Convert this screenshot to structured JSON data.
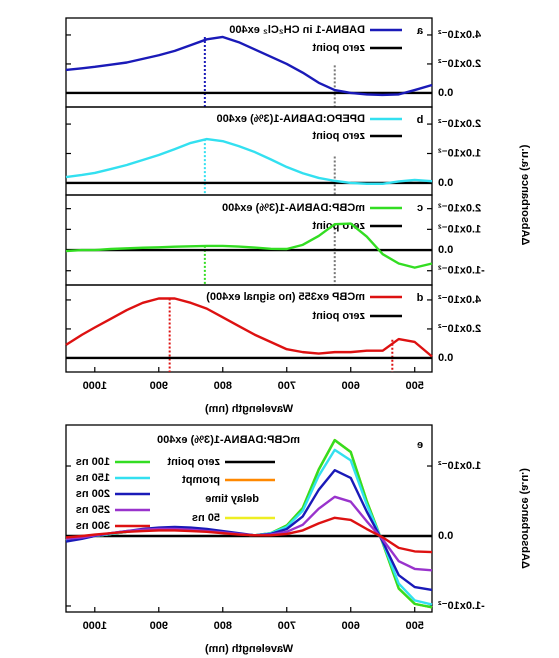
{
  "chart_data": [
    {
      "type": "line",
      "panel_label": "a",
      "ylabel": "ΔAbsorbance (a.u.)",
      "x": [
        1045,
        1020,
        1000,
        975,
        950,
        925,
        900,
        875,
        850,
        825,
        800,
        775,
        750,
        725,
        700,
        675,
        650,
        625,
        600,
        575,
        550,
        525,
        500,
        473
      ],
      "xlim": [
        473,
        1045
      ],
      "ylim": [
        -0.0097,
        0.0517
      ],
      "yticks": [
        {
          "value": 0,
          "label": "0.0"
        },
        {
          "value": 0.02,
          "label": "2.0x10⁻²"
        },
        {
          "value": 0.04,
          "label": "4.0x10⁻²"
        }
      ],
      "series": [
        {
          "name": "zero point",
          "color": "#000000",
          "values": [
            0,
            0,
            0,
            0,
            0,
            0,
            0,
            0,
            0,
            0,
            0,
            0,
            0,
            0,
            0,
            0,
            0,
            0,
            0,
            0,
            0,
            0,
            0,
            0
          ]
        },
        {
          "name": "DABNA-1 in CH₂Cl₂ ex400",
          "color": "#1a1ab8",
          "values": [
            0.0159,
            0.017,
            0.018,
            0.0195,
            0.021,
            0.0235,
            0.026,
            0.029,
            0.033,
            0.037,
            0.0386,
            0.035,
            0.03,
            0.025,
            0.02,
            0.014,
            0.007,
            0.002,
            0,
            -0.001,
            -0.0014,
            -0.001,
            0.002,
            0.0055
          ]
        }
      ],
      "markers": [
        {
          "x": 828,
          "y": 0.0386,
          "color": "#1a1ab8"
        },
        {
          "x": 625,
          "y": 0.019,
          "color": "#777777"
        }
      ]
    },
    {
      "type": "line",
      "panel_label": "b",
      "x": [
        1045,
        1020,
        1000,
        975,
        950,
        925,
        900,
        875,
        850,
        825,
        800,
        775,
        750,
        725,
        700,
        675,
        650,
        625,
        600,
        575,
        550,
        525,
        500,
        473
      ],
      "xlim": [
        473,
        1045
      ],
      "ylim": [
        -0.0041,
        0.0258
      ],
      "yticks": [
        {
          "value": 0,
          "label": "0.0"
        },
        {
          "value": 0.01,
          "label": "1.0x10⁻²"
        },
        {
          "value": 0.02,
          "label": "2.0x10⁻²"
        }
      ],
      "series": [
        {
          "name": "zero point",
          "color": "#000000",
          "values": [
            0,
            0,
            0,
            0,
            0,
            0,
            0,
            0,
            0,
            0,
            0,
            0,
            0,
            0,
            0,
            0,
            0,
            0,
            0,
            0,
            0,
            0,
            0,
            0
          ]
        },
        {
          "name": "DPEPO:DABNA-1(3%) ex400",
          "color": "#33e0f0",
          "values": [
            0.002,
            0.0027,
            0.0034,
            0.0047,
            0.0061,
            0.0078,
            0.0095,
            0.0115,
            0.0136,
            0.0149,
            0.0142,
            0.0125,
            0.0105,
            0.008,
            0.0054,
            0.0033,
            0.0017,
            0.0007,
            0,
            -0.0003,
            -0.0003,
            0.0005,
            0.001,
            0.0006
          ]
        }
      ],
      "markers": [
        {
          "x": 828,
          "y": 0.0149,
          "color": "#33e0f0"
        },
        {
          "x": 625,
          "y": 0.009,
          "color": "#777777"
        }
      ]
    },
    {
      "type": "line",
      "panel_label": "c",
      "x": [
        1045,
        1020,
        1000,
        975,
        950,
        925,
        900,
        875,
        850,
        825,
        800,
        775,
        750,
        725,
        700,
        675,
        650,
        625,
        600,
        575,
        550,
        525,
        500,
        473
      ],
      "xlim": [
        473,
        1045
      ],
      "ylim": [
        -0.0169,
        0.0266
      ],
      "yticks": [
        {
          "value": -0.01,
          "label": "-1.0x10⁻²"
        },
        {
          "value": 0,
          "label": "0.0"
        },
        {
          "value": 0.01,
          "label": "1.0x10⁻²"
        },
        {
          "value": 0.02,
          "label": "2.0x10⁻²"
        }
      ],
      "series": [
        {
          "name": "zero point",
          "color": "#000000",
          "values": [
            0,
            0,
            0,
            0,
            0,
            0,
            0,
            0,
            0,
            0,
            0,
            0,
            0,
            0,
            0,
            0,
            0,
            0,
            0,
            0,
            0,
            0,
            0,
            0
          ]
        },
        {
          "name": "mCBP:DABNA-1(3%) ex400",
          "color": "#33dd22",
          "values": [
            -0.0005,
            0,
            0,
            0.0005,
            0.0008,
            0.0011,
            0.0013,
            0.0016,
            0.0018,
            0.002,
            0.002,
            0.0017,
            0.0012,
            0.0006,
            0.0005,
            0.0025,
            0.0068,
            0.0125,
            0.0128,
            0.0065,
            -0.002,
            -0.0065,
            -0.0085,
            -0.0065
          ]
        }
      ],
      "markers": [
        {
          "x": 828,
          "y": 0.002,
          "color": "#33dd22"
        },
        {
          "x": 625,
          "y": 0.0125,
          "color": "#777777"
        }
      ]
    },
    {
      "type": "line",
      "panel_label": "d",
      "xlabel": "Wavelength (nm)",
      "x": [
        1045,
        1020,
        1000,
        975,
        950,
        925,
        900,
        875,
        850,
        825,
        800,
        775,
        750,
        725,
        700,
        675,
        650,
        625,
        600,
        575,
        550,
        525,
        500,
        473
      ],
      "xlim": [
        473,
        1045
      ],
      "xticks": [
        500,
        600,
        700,
        800,
        900,
        1000
      ],
      "ylim": [
        -0.0097,
        0.0503
      ],
      "yticks": [
        {
          "value": 0,
          "label": "0.0"
        },
        {
          "value": 0.02,
          "label": "2.0x10⁻²"
        },
        {
          "value": 0.04,
          "label": "4.0x10⁻²"
        }
      ],
      "series": [
        {
          "name": "zero point",
          "color": "#000000",
          "values": [
            0,
            0,
            0,
            0,
            0,
            0,
            0,
            0,
            0,
            0,
            0,
            0,
            0,
            0,
            0,
            0,
            0,
            0,
            0,
            0,
            0,
            0,
            0,
            0
          ]
        },
        {
          "name": "mCBP ex355 (no signal ex400)",
          "color": "#dd1111",
          "values": [
            0.009,
            0.016,
            0.021,
            0.027,
            0.033,
            0.038,
            0.041,
            0.041,
            0.038,
            0.034,
            0.028,
            0.022,
            0.016,
            0.011,
            0.006,
            0.004,
            0.003,
            0.004,
            0.004,
            0.005,
            0.005,
            0.013,
            0.011,
            0.001
          ]
        }
      ],
      "markers": [
        {
          "x": 883,
          "y": 0.041,
          "color": "#dd1111"
        },
        {
          "x": 535,
          "y": 0.0125,
          "color": "#dd1111"
        }
      ]
    },
    {
      "type": "line",
      "panel_label": "e",
      "xlabel": "Wavelength (nm)",
      "ylabel": "ΔAbsorbance (a.u.)",
      "legend_title": "mCBP:DABNA-1(3%) ex400",
      "legend_note": "delay time",
      "x": [
        1045,
        1020,
        1000,
        975,
        950,
        925,
        900,
        875,
        850,
        825,
        800,
        775,
        750,
        725,
        700,
        675,
        650,
        625,
        600,
        575,
        550,
        525,
        500,
        473
      ],
      "xlim": [
        473,
        1045
      ],
      "xticks": [
        500,
        600,
        700,
        800,
        900,
        1000
      ],
      "ylim": [
        -0.01086,
        0.01586
      ],
      "yticks": [
        {
          "value": -0.01,
          "label": "-1.0x10⁻²"
        },
        {
          "value": 0,
          "label": "0.0"
        },
        {
          "value": 0.01,
          "label": "1.0x10⁻²"
        }
      ],
      "series": [
        {
          "name": "zero point",
          "color": "#000000",
          "values": [
            0,
            0,
            0,
            0,
            0,
            0,
            0,
            0,
            0,
            0,
            0,
            0,
            0,
            0,
            0,
            0,
            0,
            0,
            0,
            0,
            0,
            0,
            0,
            0
          ]
        },
        {
          "name": "prompt",
          "color": "#ff8800",
          "values": [
            -0.0006,
            -0.0003,
            0,
            0.0003,
            0.0006,
            0.0009,
            0.0011,
            0.0012,
            0.0011,
            0.0009,
            0.0006,
            0.0003,
            0.0001,
            0.0004,
            0.0015,
            0.004,
            0.0095,
            0.0137,
            0.012,
            0.005,
            -0.001,
            -0.0075,
            -0.0097,
            -0.0102
          ]
        },
        {
          "name": "50 ns",
          "color": "#eeee22",
          "values": [
            -0.0006,
            -0.0003,
            0,
            0.0003,
            0.0006,
            0.0009,
            0.0011,
            0.0012,
            0.0011,
            0.0009,
            0.0006,
            0.0003,
            0.0001,
            0.0004,
            0.0015,
            0.004,
            0.0095,
            0.0137,
            0.012,
            0.005,
            -0.001,
            -0.0075,
            -0.0097,
            -0.0102
          ]
        },
        {
          "name": "100 ns",
          "color": "#33dd22",
          "values": [
            -0.0006,
            -0.0003,
            0,
            0.0003,
            0.0006,
            0.0009,
            0.0011,
            0.0012,
            0.0011,
            0.0009,
            0.0006,
            0.0003,
            0.0001,
            0.0004,
            0.0015,
            0.004,
            0.0095,
            0.0137,
            0.012,
            0.005,
            -0.001,
            -0.0075,
            -0.0097,
            -0.0102
          ]
        },
        {
          "name": "150 ns",
          "color": "#33e0f0",
          "values": [
            -0.0006,
            -0.0003,
            0,
            0.0003,
            0.0006,
            0.0009,
            0.0011,
            0.0012,
            0.0011,
            0.0009,
            0.0006,
            0.0003,
            0.0001,
            0.0004,
            0.0013,
            0.0036,
            0.0086,
            0.0123,
            0.0108,
            0.0045,
            -0.0009,
            -0.0068,
            -0.0092,
            -0.0098
          ]
        },
        {
          "name": "200 ns",
          "color": "#1a1ab8",
          "values": [
            -0.0008,
            -0.0004,
            0,
            0.0004,
            0.0007,
            0.001,
            0.0012,
            0.0013,
            0.0012,
            0.001,
            0.0007,
            0.0004,
            0.0001,
            0.0003,
            0.001,
            0.0028,
            0.0066,
            0.0094,
            0.0083,
            0.0035,
            -0.0008,
            -0.0056,
            -0.0073,
            -0.0077
          ]
        },
        {
          "name": "250 ns",
          "color": "#9933cc",
          "values": [
            -0.0004,
            -0.0002,
            0.0001,
            0.0004,
            0.0007,
            0.0009,
            0.001,
            0.001,
            0.0009,
            0.0007,
            0.0005,
            0.0003,
            0.0001,
            0.0002,
            0.0006,
            0.0016,
            0.0039,
            0.0056,
            0.0049,
            0.0021,
            -0.0005,
            -0.0036,
            -0.0047,
            -0.0049
          ]
        },
        {
          "name": "300 ns",
          "color": "#dd1111",
          "values": [
            -0.0002,
            0,
            0.0002,
            0.0004,
            0.0006,
            0.0007,
            0.0008,
            0.0008,
            0.0007,
            0.0006,
            0.0004,
            0.0002,
            0.0001,
            0.0001,
            0.0003,
            0.0008,
            0.0018,
            0.0026,
            0.0023,
            0.001,
            -0.0002,
            -0.0017,
            -0.0022,
            -0.0023
          ]
        }
      ]
    }
  ]
}
